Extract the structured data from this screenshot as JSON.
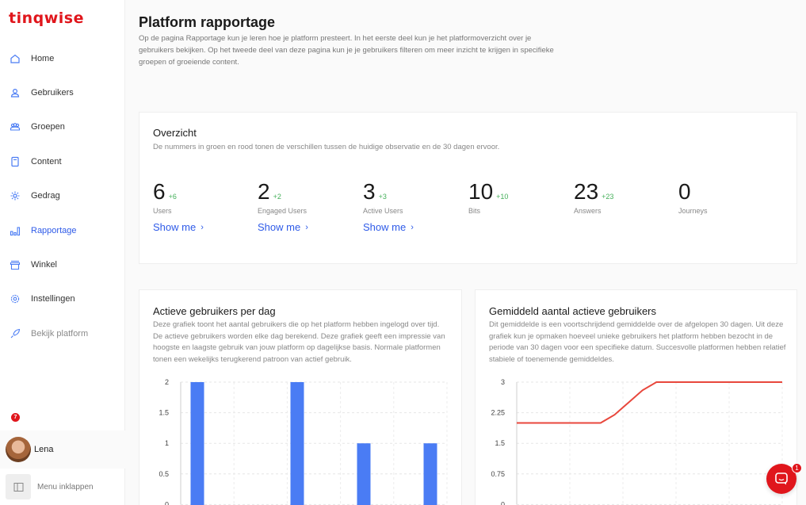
{
  "brand": {
    "logo_text": "tinqwise",
    "accent": "#e0161c",
    "link_color": "#2f5be8",
    "positive_color": "#45b05a"
  },
  "sidebar": {
    "items": [
      {
        "label": "Home",
        "icon": "home-icon"
      },
      {
        "label": "Gebruikers",
        "icon": "user-icon"
      },
      {
        "label": "Groepen",
        "icon": "group-icon"
      },
      {
        "label": "Content",
        "icon": "document-icon"
      },
      {
        "label": "Gedrag",
        "icon": "gear-icon"
      },
      {
        "label": "Rapportage",
        "icon": "chart-icon",
        "active": true
      },
      {
        "label": "Winkel",
        "icon": "store-icon"
      },
      {
        "label": "Instellingen",
        "icon": "settings-icon"
      },
      {
        "label": "Bekijk platform",
        "icon": "rocket-icon"
      }
    ],
    "notification_count": "7",
    "user_name": "Lena",
    "collapse_label": "Menu inklappen"
  },
  "page": {
    "title": "Platform rapportage",
    "description": "Op de pagina Rapportage kun je leren hoe je platform presteert. In het eerste deel kun je het platformoverzicht over je gebruikers bekijken. Op het tweede deel van deze pagina kun je je gebruikers filteren om meer inzicht te krijgen in specifieke groepen of groeiende content."
  },
  "overview": {
    "title": "Overzicht",
    "subtitle": "De nummers in groen en rood tonen de verschillen tussen de huidige observatie en de 30 dagen ervoor.",
    "stats": [
      {
        "value": "6",
        "delta": "+6",
        "label": "Users",
        "link": "Show me"
      },
      {
        "value": "2",
        "delta": "+2",
        "label": "Engaged Users",
        "link": "Show me"
      },
      {
        "value": "3",
        "delta": "+3",
        "label": "Active Users",
        "link": "Show me"
      },
      {
        "value": "10",
        "delta": "+10",
        "label": "Bits",
        "link": ""
      },
      {
        "value": "23",
        "delta": "+23",
        "label": "Answers",
        "link": ""
      },
      {
        "value": "0",
        "delta": "",
        "label": "Journeys",
        "link": ""
      }
    ]
  },
  "charts": {
    "daily": {
      "title": "Actieve gebruikers per dag",
      "description": "Deze grafiek toont het aantal gebruikers die op het platform hebben ingelogd over tijd. De actieve gebruikers worden elke dag berekend. Deze grafiek geeft een impressie van hoogste en laagste gebruik van jouw platform op dagelijkse basis. Normale platformen tonen een wekelijks terugkerend patroon van actief gebruik."
    },
    "average": {
      "title": "Gemiddeld aantal actieve gebruikers",
      "description": "Dit gemiddelde is een voortschrijdend gemiddelde over de afgelopen 30 dagen. Uit deze grafiek kun je opmaken hoeveel unieke gebruikers het platform hebben bezocht in de periode van 30 dagen voor een specifieke datum. Succesvolle platformen hebben relatief stabiele of toenemende gemiddeldes."
    }
  },
  "chat": {
    "badge": "1"
  },
  "chart_data": [
    {
      "type": "bar",
      "title": "Actieve gebruikers per dag",
      "ylim": [
        0,
        2
      ],
      "yticks": [
        "2",
        "1.5",
        "1",
        "0.5",
        "0"
      ],
      "color": "#4a7cf4",
      "values": [
        2,
        0,
        0,
        2,
        0,
        1,
        0,
        1
      ],
      "grid": true
    },
    {
      "type": "line",
      "title": "Gemiddeld aantal actieve gebruikers",
      "ylim": [
        0,
        3
      ],
      "yticks": [
        "3",
        "2.25",
        "1.5",
        "0.75",
        "0"
      ],
      "color": "#e8473c",
      "values": [
        2,
        2,
        2,
        2,
        2,
        2,
        2,
        2.2,
        2.5,
        2.8,
        3,
        3,
        3,
        3,
        3,
        3,
        3,
        3,
        3,
        3
      ],
      "grid": true
    }
  ]
}
